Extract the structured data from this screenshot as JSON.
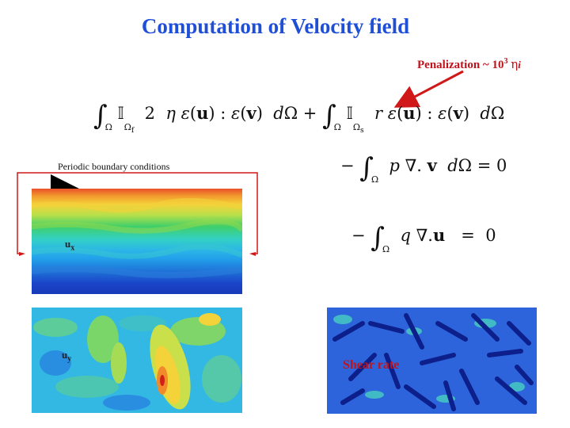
{
  "title": "Computation of Velocity field",
  "penalization": {
    "label": "Penalization ~ 10",
    "exponent": "3",
    "eta": "η",
    "subscript": "i"
  },
  "periodic_label": "Periodic boundary conditions",
  "field_labels": {
    "ux_base": "u",
    "ux_sub": "x",
    "uy_base": "u",
    "uy_sub": "y"
  },
  "shear_label": "Shear rate",
  "colors": {
    "title": "#1f4fd6",
    "penalization": "#c0131b",
    "arrow": "#d01818",
    "bracket": "#d01818"
  }
}
